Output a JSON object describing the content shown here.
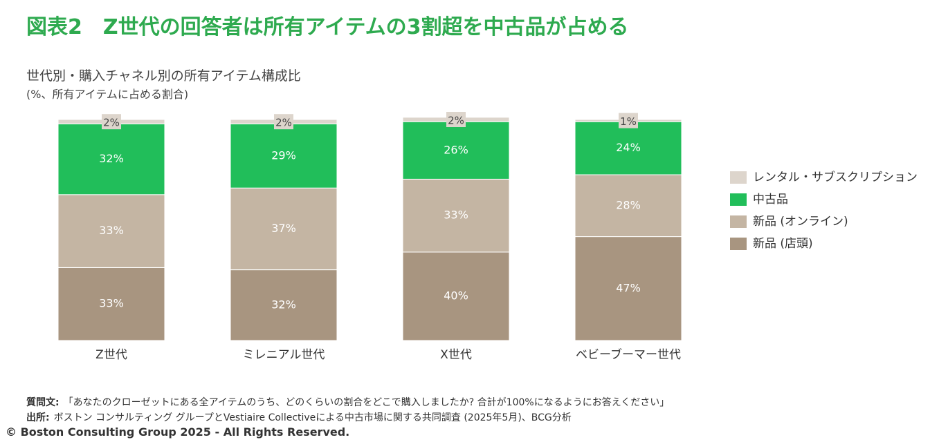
{
  "chart_data": {
    "type": "stacked_bar",
    "title": "図表2　Z世代の回答者は所有アイテムの3割超を中古品が占める",
    "subtitle": "世代別・購入チャネル別の所有アイテム構成比",
    "unit_note": "(%、所有アイテムに占める割合)",
    "categories": [
      "Z世代",
      "ミレニアル世代",
      "X世代",
      "ベビーブーマー世代"
    ],
    "series": [
      {
        "name": "新品 (店頭)",
        "color": "#a89580",
        "values": [
          33,
          32,
          40,
          47
        ],
        "value_labels": [
          "33%",
          "32%",
          "40%",
          "47%"
        ]
      },
      {
        "name": "新品 (オンライン)",
        "color": "#c4b5a3",
        "values": [
          33,
          37,
          33,
          28
        ],
        "value_labels": [
          "33%",
          "37%",
          "33%",
          "28%"
        ]
      },
      {
        "name": "中古品",
        "color": "#21be5a",
        "values": [
          32,
          29,
          26,
          24
        ],
        "value_labels": [
          "32%",
          "29%",
          "26%",
          "24%"
        ]
      },
      {
        "name": "レンタル・サブスクリプション",
        "color": "#ddd5cc",
        "values": [
          2,
          2,
          2,
          1
        ],
        "value_labels": [
          "2%",
          "2%",
          "2%",
          "1%"
        ]
      }
    ],
    "notes": [
      {
        "label": "質問文:",
        "text": "「あなたのクローゼットにある全アイテムのうち、どのくらいの割合をどこで購入しましたか? 合計が100%になるようにお答えください」"
      },
      {
        "label": "出所:",
        "text": "ボストン コンサルティング グループとVestiaire Collectiveによる中古市場に関する共同調査 (2025年5月)、BCG分析"
      }
    ],
    "copyright": "© Boston Consulting Group 2025 - All Rights Reserved."
  }
}
